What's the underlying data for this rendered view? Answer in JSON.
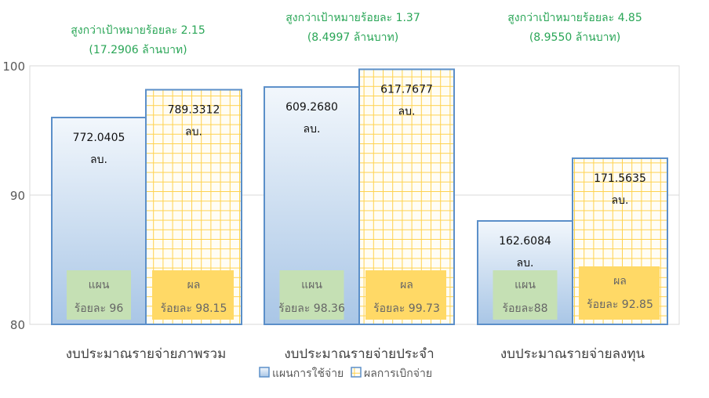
{
  "chart_data": {
    "type": "bar",
    "ylim": [
      80,
      100
    ],
    "yticks": [
      "80",
      "90",
      "100"
    ],
    "grid": true,
    "legend_placement": "bottom",
    "categories": [
      "งบประมาณรายจ่ายภาพรวม",
      "งบประมาณรายจ่ายประจำ",
      "งบประมาณรายจ่ายลงทุน"
    ],
    "series": [
      {
        "name": "แผนการใช้จ่าย",
        "values": [
          96,
          98.36,
          88
        ],
        "color": "#bcd3ec",
        "border": "#5b8fc9"
      },
      {
        "name": "ผลการเบิกจ่าย",
        "values": [
          98.15,
          99.73,
          92.85
        ],
        "color": "#ffe27a",
        "border": "#5b8fc9"
      }
    ],
    "value_labels": [
      [
        [
          "772.0405",
          "ลบ."
        ],
        [
          "789.3312",
          "ลบ."
        ]
      ],
      [
        [
          "609.2680",
          "ลบ."
        ],
        [
          "617.7677",
          "ลบ."
        ]
      ],
      [
        [
          "162.6084",
          "ลบ."
        ],
        [
          "171.5635",
          "ลบ."
        ]
      ]
    ],
    "box_labels": [
      [
        [
          "แผน",
          "ร้อยละ 96"
        ],
        [
          "ผล",
          "ร้อยละ 98.15"
        ]
      ],
      [
        [
          "แผน",
          "ร้อยละ 98.36"
        ],
        [
          "ผล",
          "ร้อยละ 99.73"
        ]
      ],
      [
        [
          "แผน",
          "ร้อยละ88"
        ],
        [
          "ผล",
          "ร้อยละ 92.85"
        ]
      ]
    ],
    "annotations": [
      [
        "สูงกว่าเป้าหมายร้อยละ 2.15",
        "(17.2906 ล้านบาท)"
      ],
      [
        "สูงกว่าเป้าหมายร้อยละ 1.37",
        "(8.4997 ล้านบาท)"
      ],
      [
        "สูงกว่าเป้าหมายร้อยละ 4.85",
        "(8.9550 ล้านบาท)"
      ]
    ],
    "colors": {
      "annotation": "#2aa657",
      "plan_box": "#c5e0b4",
      "actual_box": "#ffd966",
      "grid_line": "#ffd24d"
    }
  }
}
